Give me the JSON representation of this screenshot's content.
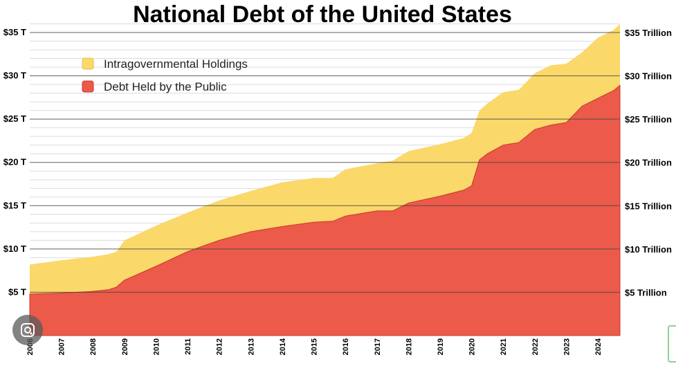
{
  "chart_data": {
    "type": "area",
    "title": "National Debt of the United States",
    "xlabel": "",
    "ylabel": "",
    "x_range": [
      "2006-01",
      "2024-09"
    ],
    "ylim": [
      0,
      36
    ],
    "stacked": true,
    "colors": {
      "intragovernmental": "#fad86a",
      "public": "#ec5a4a",
      "gridline": "#444444"
    },
    "x_tick_labels": [
      "2006",
      "2007",
      "2008",
      "2009",
      "2010",
      "2011",
      "2012",
      "2013",
      "2014",
      "2015",
      "2016",
      "2017",
      "2018",
      "2019",
      "2020",
      "2021",
      "2022",
      "2023",
      "2024"
    ],
    "y_ticks_left": [
      {
        "value": 5,
        "label": "$5 T"
      },
      {
        "value": 10,
        "label": "$10 T"
      },
      {
        "value": 15,
        "label": "$15 T"
      },
      {
        "value": 20,
        "label": "$20 T"
      },
      {
        "value": 25,
        "label": "$25 T"
      },
      {
        "value": 30,
        "label": "$30 T"
      },
      {
        "value": 35,
        "label": "$35 T"
      }
    ],
    "y_ticks_right": [
      {
        "value": 5,
        "label": "$5 Trillion"
      },
      {
        "value": 10,
        "label": "$10 Trillion"
      },
      {
        "value": 15,
        "label": "$15 Trillion"
      },
      {
        "value": 20,
        "label": "$20 Trillion"
      },
      {
        "value": 25,
        "label": "$25 Trillion"
      },
      {
        "value": 30,
        "label": "$30 Trillion"
      },
      {
        "value": 35,
        "label": "$35 Trillion"
      }
    ],
    "legend": {
      "position": "top-left",
      "entries": [
        {
          "name": "Intragovernmental Holdings",
          "color": "#fad86a"
        },
        {
          "name": "Debt Held by the Public",
          "color": "#ec5a4a"
        }
      ]
    },
    "x": [
      2006.0,
      2007.0,
      2008.0,
      2008.5,
      2008.75,
      2009.0,
      2010.0,
      2011.0,
      2012.0,
      2013.0,
      2014.0,
      2015.0,
      2015.6,
      2016.0,
      2017.0,
      2017.5,
      2018.0,
      2019.0,
      2019.75,
      2020.0,
      2020.25,
      2020.5,
      2021.0,
      2021.5,
      2022.0,
      2022.5,
      2023.0,
      2023.5,
      2024.0,
      2024.5,
      2024.7
    ],
    "series": [
      {
        "name": "Debt Held by the Public",
        "values": [
          4.8,
          4.9,
          5.1,
          5.3,
          5.6,
          6.4,
          8.0,
          9.7,
          11.0,
          12.0,
          12.6,
          13.1,
          13.2,
          13.8,
          14.4,
          14.4,
          15.3,
          16.1,
          16.8,
          17.3,
          20.3,
          21.0,
          22.0,
          22.3,
          23.8,
          24.3,
          24.6,
          26.5,
          27.4,
          28.3,
          28.9
        ]
      },
      {
        "name": "Intragovernmental Holdings",
        "values": [
          3.4,
          3.8,
          4.0,
          4.1,
          4.1,
          4.6,
          4.7,
          4.5,
          4.6,
          4.7,
          5.1,
          5.1,
          5.0,
          5.4,
          5.5,
          5.8,
          6.0,
          6.0,
          6.0,
          6.1,
          5.7,
          5.8,
          6.1,
          6.1,
          6.5,
          6.9,
          6.8,
          6.2,
          7.0,
          7.0,
          7.1
        ]
      }
    ]
  }
}
